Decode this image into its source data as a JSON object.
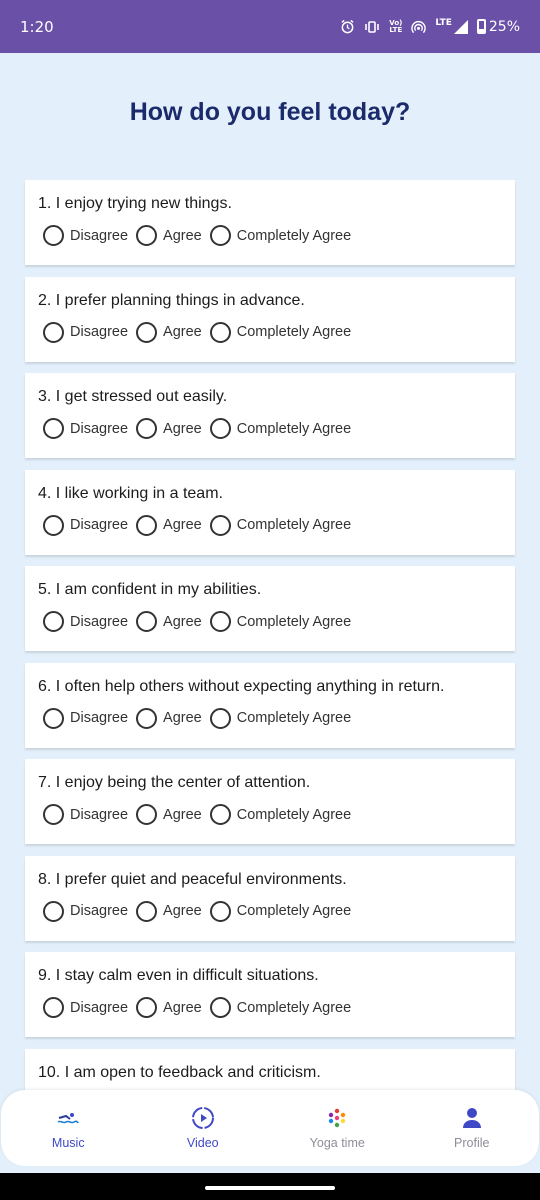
{
  "status_bar": {
    "time": "1:20",
    "volte_top": "Vo)",
    "volte_bottom": "LTE",
    "lte": "LTE",
    "battery": "25%"
  },
  "page": {
    "title": "How do you feel today?"
  },
  "options": [
    "Disagree",
    "Agree",
    "Completely Agree"
  ],
  "questions": [
    {
      "text": "1. I enjoy trying new things."
    },
    {
      "text": "2. I prefer planning things in advance."
    },
    {
      "text": "3. I get stressed out easily."
    },
    {
      "text": "4. I like working in a team."
    },
    {
      "text": "5. I am confident in my abilities."
    },
    {
      "text": "6. I often help others without expecting anything in return."
    },
    {
      "text": "7. I enjoy being the center of attention."
    },
    {
      "text": "8. I prefer quiet and peaceful environments."
    },
    {
      "text": "9. I stay calm even in difficult situations."
    },
    {
      "text": "10. I am open to feedback and criticism."
    }
  ],
  "nav": {
    "items": [
      {
        "label": "Music",
        "icon": "swimmer-icon",
        "active": true
      },
      {
        "label": "Video",
        "icon": "play-circle-icon",
        "active": true
      },
      {
        "label": "Yoga time",
        "icon": "colorful-dots-icon",
        "active": false
      },
      {
        "label": "Profile",
        "icon": "person-icon",
        "active": false
      }
    ]
  },
  "colors": {
    "status_bar": "#6a50a7",
    "background": "#e3f0fb",
    "title": "#1b2a6b",
    "nav_active": "#3f49c6",
    "nav_muted": "#8e8e98"
  }
}
